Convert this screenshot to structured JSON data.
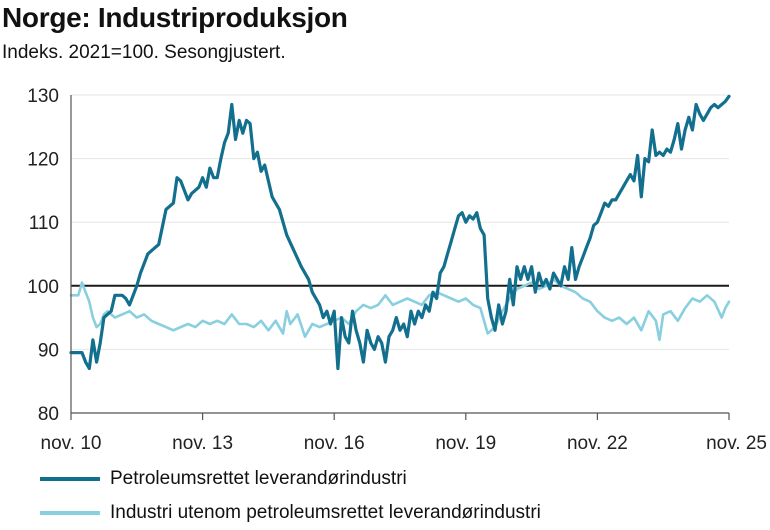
{
  "header": {
    "title": "Norge: Industriproduksjon",
    "subtitle": "Indeks. 2021=100. Sesongjustert."
  },
  "colors": {
    "dark_series": "#136f8e",
    "light_series": "#88cfdf",
    "reference_line": "#1a1a1a",
    "grid": "#e6e6e6"
  },
  "chart_data": {
    "type": "line",
    "title": "Norge: Industriproduksjon",
    "subtitle": "Indeks. 2021=100. Sesongjustert.",
    "xlabel": "",
    "ylabel": "",
    "xlim": [
      0,
      180
    ],
    "ylim": [
      80,
      130
    ],
    "yticks": [
      80,
      90,
      100,
      110,
      120,
      130
    ],
    "xticks": [
      {
        "month_index": 0,
        "label": "nov. 10"
      },
      {
        "month_index": 36,
        "label": "nov. 13"
      },
      {
        "month_index": 72,
        "label": "nov. 16"
      },
      {
        "month_index": 108,
        "label": "nov. 19"
      },
      {
        "month_index": 144,
        "label": "nov. 22"
      },
      {
        "month_index": 180,
        "label": "nov. 25"
      }
    ],
    "reference_line": 100,
    "grid": true,
    "legend_position": "bottom",
    "series": [
      {
        "name": "Petroleumsrettet leverandørindustri",
        "color": "#136f8e",
        "points": [
          [
            0,
            89.5
          ],
          [
            3,
            89.5
          ],
          [
            4,
            88
          ],
          [
            5,
            87
          ],
          [
            6,
            91.5
          ],
          [
            7,
            88
          ],
          [
            8,
            91
          ],
          [
            9,
            95
          ],
          [
            11,
            96
          ],
          [
            12,
            98.5
          ],
          [
            14,
            98.5
          ],
          [
            15,
            98
          ],
          [
            16,
            97
          ],
          [
            18,
            100
          ],
          [
            19,
            102
          ],
          [
            21,
            105
          ],
          [
            23,
            106
          ],
          [
            24,
            106.5
          ],
          [
            26,
            112
          ],
          [
            28,
            113
          ],
          [
            29,
            117
          ],
          [
            30,
            116.5
          ],
          [
            32,
            113.5
          ],
          [
            33,
            114.5
          ],
          [
            35,
            115.5
          ],
          [
            36,
            117
          ],
          [
            37,
            115.5
          ],
          [
            38,
            118.5
          ],
          [
            39,
            117
          ],
          [
            40,
            117
          ],
          [
            41,
            120
          ],
          [
            42,
            122.5
          ],
          [
            43,
            124
          ],
          [
            44,
            128.5
          ],
          [
            45,
            123
          ],
          [
            46,
            126
          ],
          [
            47,
            124
          ],
          [
            48,
            126
          ],
          [
            49,
            125.5
          ],
          [
            50,
            120
          ],
          [
            51,
            121
          ],
          [
            52,
            118
          ],
          [
            53,
            119
          ],
          [
            55,
            114
          ],
          [
            57,
            112
          ],
          [
            59,
            108
          ],
          [
            61,
            105.5
          ],
          [
            63,
            103
          ],
          [
            65,
            101
          ],
          [
            66,
            99
          ],
          [
            67,
            98
          ],
          [
            68,
            97
          ],
          [
            69,
            95
          ],
          [
            70,
            96
          ],
          [
            71,
            94
          ],
          [
            72,
            96
          ],
          [
            73,
            87
          ],
          [
            74,
            95
          ],
          [
            75,
            92
          ],
          [
            76,
            91
          ],
          [
            77,
            96
          ],
          [
            78,
            93
          ],
          [
            79,
            91
          ],
          [
            80,
            88
          ],
          [
            81,
            93
          ],
          [
            82,
            91
          ],
          [
            83,
            90
          ],
          [
            84,
            92
          ],
          [
            85,
            91
          ],
          [
            86,
            88
          ],
          [
            87,
            92
          ],
          [
            88,
            93
          ],
          [
            89,
            95
          ],
          [
            90,
            93
          ],
          [
            91,
            94
          ],
          [
            92,
            92
          ],
          [
            93,
            96
          ],
          [
            94,
            94
          ],
          [
            95,
            96
          ],
          [
            96,
            95
          ],
          [
            97,
            97
          ],
          [
            98,
            96
          ],
          [
            99,
            99
          ],
          [
            100,
            98
          ],
          [
            101,
            102
          ],
          [
            102,
            103
          ],
          [
            103,
            105
          ],
          [
            104,
            107
          ],
          [
            105,
            109
          ],
          [
            106,
            111
          ],
          [
            107,
            111.5
          ],
          [
            108,
            110
          ],
          [
            109,
            111
          ],
          [
            110,
            110.5
          ],
          [
            111,
            111.5
          ],
          [
            112,
            109
          ],
          [
            113,
            108
          ],
          [
            114,
            98
          ],
          [
            115,
            95
          ],
          [
            116,
            93
          ],
          [
            117,
            97
          ],
          [
            118,
            94
          ],
          [
            119,
            96
          ],
          [
            120,
            101
          ],
          [
            121,
            97
          ],
          [
            122,
            103
          ],
          [
            123,
            101
          ],
          [
            124,
            103
          ],
          [
            125,
            101
          ],
          [
            126,
            103
          ],
          [
            127,
            99
          ],
          [
            128,
            102
          ],
          [
            129,
            100
          ],
          [
            130,
            101
          ],
          [
            131,
            99.5
          ],
          [
            132,
            102
          ],
          [
            133,
            101
          ],
          [
            134,
            100
          ],
          [
            135,
            103
          ],
          [
            136,
            101
          ],
          [
            137,
            106
          ],
          [
            138,
            101
          ],
          [
            139,
            103
          ],
          [
            140,
            104.5
          ],
          [
            141,
            106
          ],
          [
            142,
            107.5
          ],
          [
            143,
            109.5
          ],
          [
            144,
            110
          ],
          [
            145,
            111.5
          ],
          [
            146,
            113
          ],
          [
            147,
            112.5
          ],
          [
            148,
            113.5
          ],
          [
            149,
            113.5
          ],
          [
            150,
            114.5
          ],
          [
            151,
            115.5
          ],
          [
            152,
            116.5
          ],
          [
            153,
            117.5
          ],
          [
            154,
            116.5
          ],
          [
            155,
            120.5
          ],
          [
            156,
            114
          ],
          [
            157,
            120
          ],
          [
            158,
            119.5
          ],
          [
            159,
            124.5
          ],
          [
            160,
            120.5
          ],
          [
            161,
            121
          ],
          [
            162,
            120.5
          ],
          [
            163,
            121.5
          ],
          [
            164,
            121
          ],
          [
            165,
            123
          ],
          [
            166,
            125.5
          ],
          [
            167,
            121.5
          ],
          [
            168,
            124.5
          ],
          [
            169,
            126.5
          ],
          [
            170,
            124.5
          ],
          [
            171,
            128.5
          ],
          [
            172,
            127
          ],
          [
            173,
            126
          ],
          [
            174,
            127
          ],
          [
            175,
            128
          ],
          [
            176,
            128.5
          ],
          [
            177,
            128
          ],
          [
            178,
            128.5
          ],
          [
            179,
            129
          ],
          [
            180,
            129.8
          ]
        ]
      },
      {
        "name": "Industri utenom petroleumsrettet leverandørindustri",
        "color": "#88cfdf",
        "points": [
          [
            0,
            98.5
          ],
          [
            2,
            98.5
          ],
          [
            3,
            100.5
          ],
          [
            4,
            99
          ],
          [
            5,
            97.5
          ],
          [
            6,
            95
          ],
          [
            7,
            93.5
          ],
          [
            8,
            94
          ],
          [
            9,
            95.5
          ],
          [
            10,
            96
          ],
          [
            11,
            95.5
          ],
          [
            12,
            95
          ],
          [
            14,
            95.5
          ],
          [
            16,
            96
          ],
          [
            18,
            95
          ],
          [
            20,
            95.5
          ],
          [
            22,
            94.5
          ],
          [
            24,
            94
          ],
          [
            26,
            93.5
          ],
          [
            28,
            93
          ],
          [
            30,
            93.5
          ],
          [
            32,
            94
          ],
          [
            34,
            93.5
          ],
          [
            36,
            94.5
          ],
          [
            38,
            94
          ],
          [
            40,
            94.5
          ],
          [
            42,
            94
          ],
          [
            44,
            95.5
          ],
          [
            46,
            94
          ],
          [
            48,
            94
          ],
          [
            50,
            93.5
          ],
          [
            52,
            94.5
          ],
          [
            54,
            93
          ],
          [
            56,
            94.5
          ],
          [
            58,
            92.5
          ],
          [
            59,
            96
          ],
          [
            60,
            94
          ],
          [
            62,
            95.5
          ],
          [
            64,
            92
          ],
          [
            66,
            94
          ],
          [
            68,
            93.5
          ],
          [
            70,
            94
          ],
          [
            72,
            94.5
          ],
          [
            74,
            95
          ],
          [
            76,
            94
          ],
          [
            78,
            96
          ],
          [
            80,
            97
          ],
          [
            82,
            96.5
          ],
          [
            84,
            97
          ],
          [
            86,
            98.5
          ],
          [
            88,
            97
          ],
          [
            90,
            97.5
          ],
          [
            92,
            98
          ],
          [
            94,
            97.5
          ],
          [
            96,
            97
          ],
          [
            98,
            98.5
          ],
          [
            100,
            99
          ],
          [
            102,
            98.5
          ],
          [
            104,
            98
          ],
          [
            106,
            97.5
          ],
          [
            108,
            98
          ],
          [
            110,
            97
          ],
          [
            112,
            96.5
          ],
          [
            114,
            92.5
          ],
          [
            116,
            93.5
          ],
          [
            118,
            96
          ],
          [
            120,
            98
          ],
          [
            122,
            99.5
          ],
          [
            124,
            100
          ],
          [
            126,
            100.5
          ],
          [
            128,
            99.5
          ],
          [
            130,
            100
          ],
          [
            132,
            101
          ],
          [
            134,
            100
          ],
          [
            136,
            99.5
          ],
          [
            138,
            99
          ],
          [
            140,
            98
          ],
          [
            142,
            97.5
          ],
          [
            144,
            96
          ],
          [
            146,
            95
          ],
          [
            148,
            94.5
          ],
          [
            150,
            95
          ],
          [
            152,
            94
          ],
          [
            154,
            95
          ],
          [
            156,
            93
          ],
          [
            158,
            96
          ],
          [
            160,
            94.5
          ],
          [
            161,
            91.5
          ],
          [
            162,
            95.5
          ],
          [
            164,
            96
          ],
          [
            166,
            94.5
          ],
          [
            168,
            96.5
          ],
          [
            170,
            98
          ],
          [
            172,
            97.5
          ],
          [
            174,
            98.5
          ],
          [
            176,
            97.5
          ],
          [
            178,
            95
          ],
          [
            179,
            96.5
          ],
          [
            180,
            97.5
          ]
        ]
      }
    ]
  }
}
